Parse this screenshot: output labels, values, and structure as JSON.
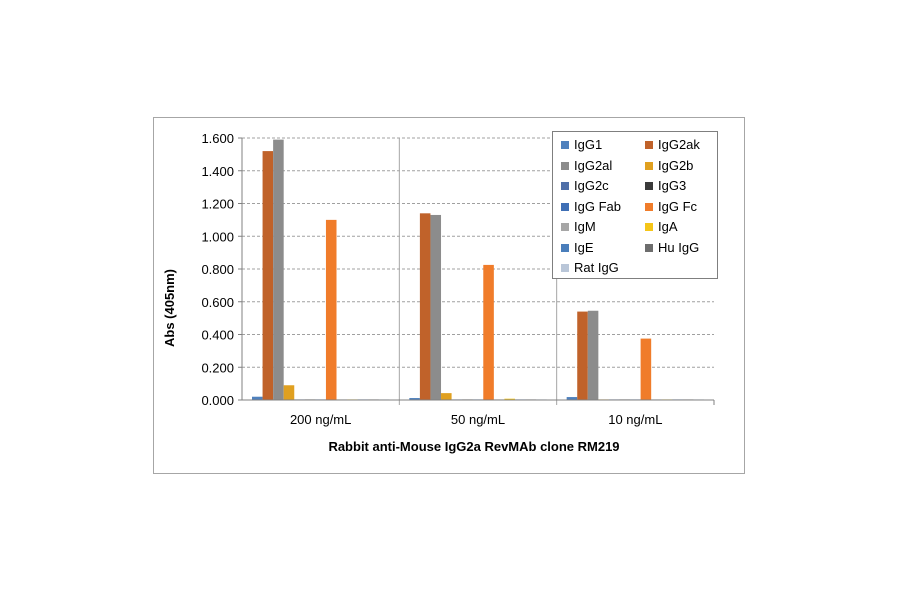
{
  "chart_data": {
    "type": "bar",
    "title": "",
    "xlabel": "Rabbit anti-Mouse  IgG2a RevMAb clone RM219",
    "ylabel": "Abs (405nm)",
    "ylim": [
      0,
      1.6
    ],
    "yticks": [
      "0.000",
      "0.200",
      "0.400",
      "0.600",
      "0.800",
      "1.000",
      "1.200",
      "1.400",
      "1.600"
    ],
    "grid": true,
    "legend_position": "top-right",
    "categories": [
      "200 ng/mL",
      "50 ng/mL",
      "10 ng/mL"
    ],
    "series": [
      {
        "name": "IgG1",
        "color": "#4f81bd",
        "values": [
          0.02,
          0.012,
          0.018
        ]
      },
      {
        "name": "IgG2ak",
        "color": "#c0622a",
        "values": [
          1.52,
          1.14,
          0.54
        ]
      },
      {
        "name": "IgG2al",
        "color": "#8c8c8c",
        "values": [
          1.59,
          1.13,
          0.545
        ]
      },
      {
        "name": "IgG2b",
        "color": "#e0a020",
        "values": [
          0.09,
          0.042,
          0.002
        ]
      },
      {
        "name": "IgG2c",
        "color": "#4f6fa8",
        "values": [
          0.002,
          0.001,
          0.001
        ]
      },
      {
        "name": "IgG3",
        "color": "#3a3a3a",
        "values": [
          0.002,
          0.002,
          0.001
        ]
      },
      {
        "name": "IgG Fab",
        "color": "#3f6fb5",
        "values": [
          0.001,
          0.001,
          0.001
        ]
      },
      {
        "name": "IgG Fc",
        "color": "#f07c2a",
        "values": [
          1.1,
          0.825,
          0.375
        ]
      },
      {
        "name": "IgM",
        "color": "#a6a6a6",
        "values": [
          0.001,
          0.001,
          0.001
        ]
      },
      {
        "name": "IgA",
        "color": "#f5c518",
        "values": [
          0.002,
          0.008,
          0.001
        ]
      },
      {
        "name": "IgE",
        "color": "#4a7ebb",
        "values": [
          0.001,
          0.001,
          0.001
        ]
      },
      {
        "name": "Hu IgG",
        "color": "#6d6d6d",
        "values": [
          0.001,
          0.001,
          0.001
        ]
      },
      {
        "name": "Rat IgG",
        "color": "#b9c6d8",
        "values": [
          0.001,
          0.001,
          0.001
        ]
      }
    ]
  }
}
